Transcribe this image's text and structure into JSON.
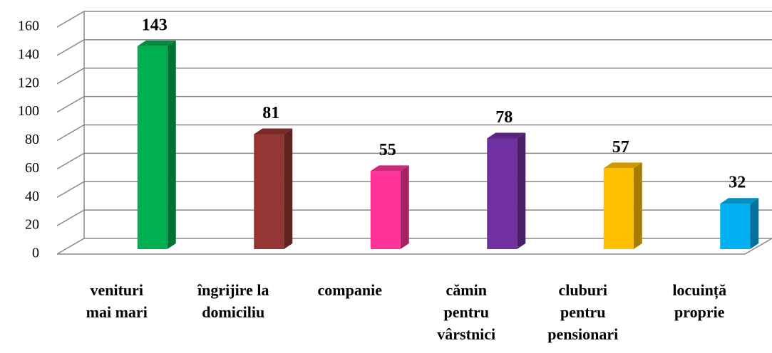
{
  "chart_data": {
    "type": "bar3d",
    "categories": [
      "venituri mai mari",
      "îngrijire la domiciliu",
      "companie",
      "cămin pentru vârstnici",
      "cluburi pentru pensionari",
      "locuință proprie"
    ],
    "values": [
      143,
      81,
      55,
      78,
      57,
      32
    ],
    "colors": [
      "#00b050",
      "#943634",
      "#ff3399",
      "#7030a0",
      "#ffc000",
      "#00b0f0"
    ],
    "ylim": [
      0,
      160
    ],
    "yticks": [
      0,
      20,
      40,
      60,
      80,
      100,
      120,
      140,
      160
    ],
    "grid": true
  }
}
